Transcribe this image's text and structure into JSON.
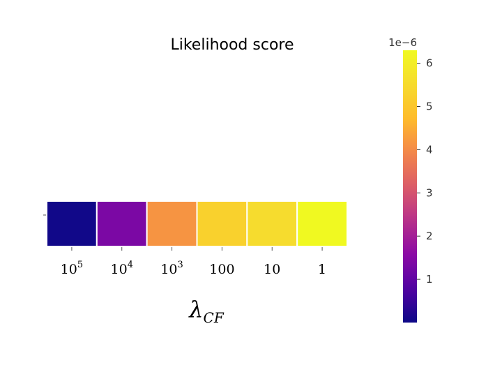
{
  "chart_data": {
    "type": "heatmap",
    "title": "Likelihood score",
    "xlabel_symbol": "λ",
    "xlabel_subscript": "CF",
    "categories": [
      {
        "base": "10",
        "exp": "5"
      },
      {
        "base": "10",
        "exp": "4"
      },
      {
        "base": "10",
        "exp": "3"
      },
      {
        "base": "100",
        "exp": ""
      },
      {
        "base": "10",
        "exp": ""
      },
      {
        "base": "1",
        "exp": ""
      }
    ],
    "values": [
      5e-08,
      1.35e-06,
      4.15e-06,
      5.25e-06,
      5.55e-06,
      6.3e-06
    ],
    "colorbar": {
      "multiplier": "1e−6",
      "range": [
        0,
        6.3e-06
      ],
      "ticks": [
        1,
        2,
        3,
        4,
        5,
        6
      ],
      "tick_labels": [
        "1",
        "2",
        "3",
        "4",
        "5",
        "6"
      ],
      "scale": 1e-06
    },
    "colormap": "plasma",
    "legend": "right"
  }
}
